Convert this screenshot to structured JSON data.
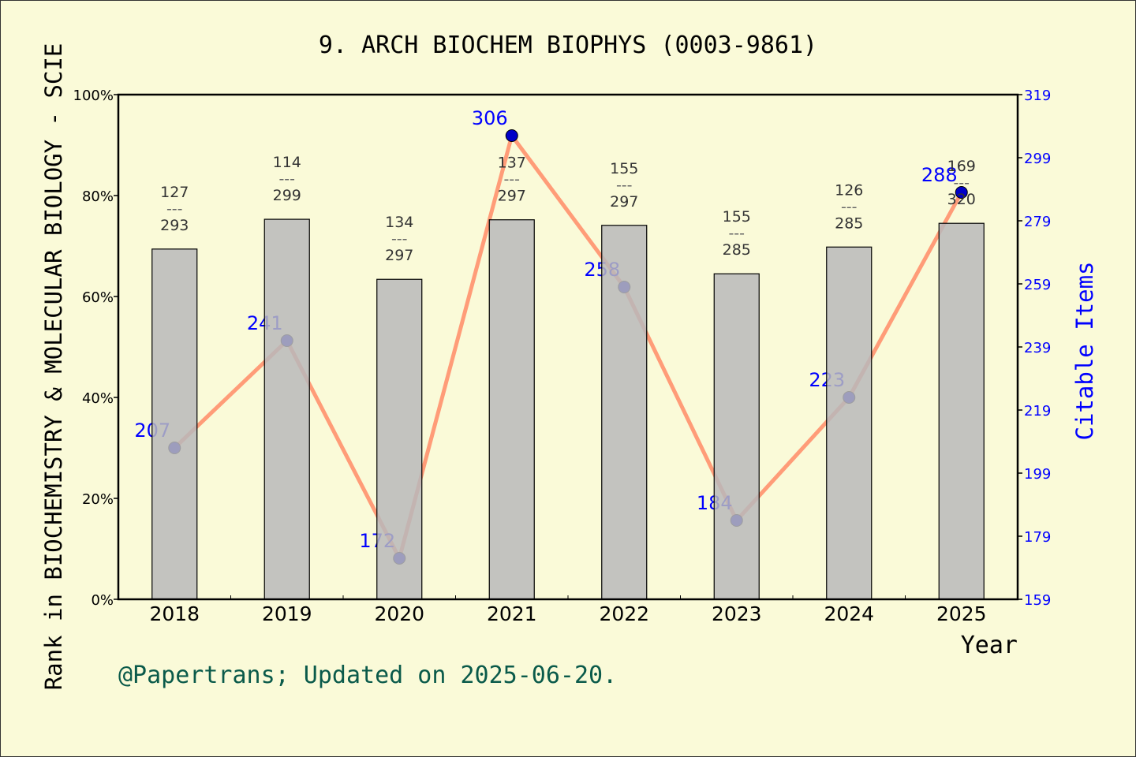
{
  "chart_data": {
    "type": "bar+line",
    "title": "9. ARCH BIOCHEM BIOPHYS (0003-9861)",
    "xlabel": "Year",
    "ylabel_left": "Rank in BIOCHEMISTRY & MOLECULAR BIOLOGY - SCIE",
    "ylabel_right": "Citable Items",
    "categories": [
      "2018",
      "2019",
      "2020",
      "2021",
      "2022",
      "2023",
      "2024",
      "2025"
    ],
    "left_axis": {
      "ylim": [
        0,
        100
      ],
      "ticks": [
        "0%",
        "20%",
        "40%",
        "60%",
        "80%",
        "100%"
      ]
    },
    "right_axis": {
      "ylim": [
        159,
        319
      ],
      "ticks": [
        "159",
        "179",
        "199",
        "219",
        "239",
        "259",
        "279",
        "299",
        "319"
      ]
    },
    "bar_series": {
      "values_percent": [
        69.4,
        75.3,
        63.4,
        75.2,
        74.1,
        64.5,
        69.8,
        74.5
      ],
      "rank": [
        "127",
        "114",
        "134",
        "137",
        "155",
        "155",
        "126",
        "169"
      ],
      "total": [
        "293",
        "299",
        "297",
        "297",
        "297",
        "285",
        "285",
        "320"
      ],
      "separator": "---",
      "color": "#b8b9bb"
    },
    "line_series": {
      "values": [
        207,
        241,
        172,
        306,
        258,
        184,
        223,
        288
      ],
      "labels": [
        "207",
        "241",
        "172",
        "306",
        "258",
        "184",
        "223",
        "288"
      ],
      "line_color": "#ff9c78",
      "marker_color": "#0000c8"
    },
    "grid": false
  },
  "footer": "@Papertrans; Updated on 2025-06-20."
}
